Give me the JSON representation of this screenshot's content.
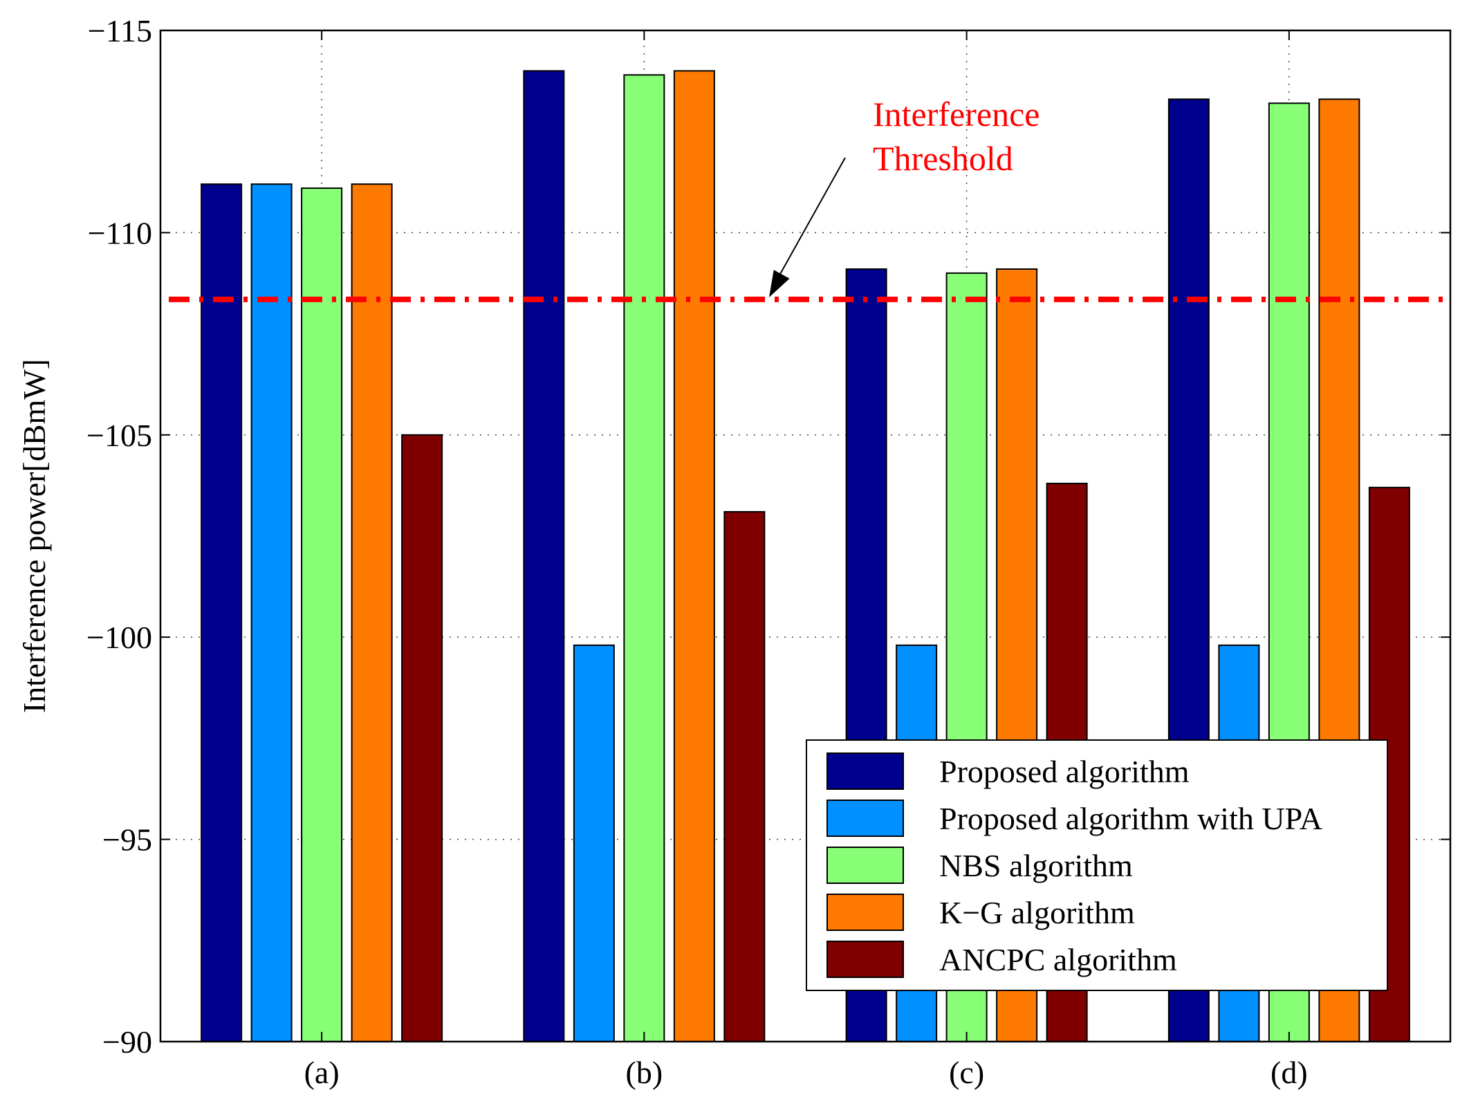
{
  "chart_data": {
    "type": "bar",
    "title": "",
    "xlabel": "",
    "ylabel": "Interference power[dBmW]",
    "y_reversed": true,
    "ylim": [
      -115,
      -90
    ],
    "yticks": [
      -115,
      -110,
      -105,
      -100,
      -95,
      -90
    ],
    "ytick_labels": [
      "−115",
      "−110",
      "−105",
      "−100",
      "−95",
      "−90"
    ],
    "grid": true,
    "legend_position": "bottom-right",
    "categories": [
      "(a)",
      "(b)",
      "(c)",
      "(d)"
    ],
    "series": [
      {
        "name": "Proposed algorithm",
        "color": "#00008f",
        "values": [
          -111.2,
          -114.0,
          -109.1,
          -113.3
        ]
      },
      {
        "name": "Proposed algorithm with UPA",
        "color": "#0090ff",
        "values": [
          -111.2,
          -99.8,
          -99.8,
          -99.8
        ]
      },
      {
        "name": "NBS algorithm",
        "color": "#88ff77",
        "values": [
          -111.1,
          -113.9,
          -109.0,
          -113.2
        ]
      },
      {
        "name": "K−G algorithm",
        "color": "#ff7a00",
        "values": [
          -111.2,
          -114.0,
          -109.1,
          -113.3
        ]
      },
      {
        "name": "ANCPC algorithm",
        "color": "#800000",
        "values": [
          -105.0,
          -103.1,
          -103.8,
          -103.7
        ]
      }
    ],
    "threshold": {
      "value": -108.35,
      "color": "#ff0000"
    },
    "annotation": {
      "lines": [
        "Interference",
        "Threshold"
      ],
      "color": "#ff0000"
    }
  }
}
